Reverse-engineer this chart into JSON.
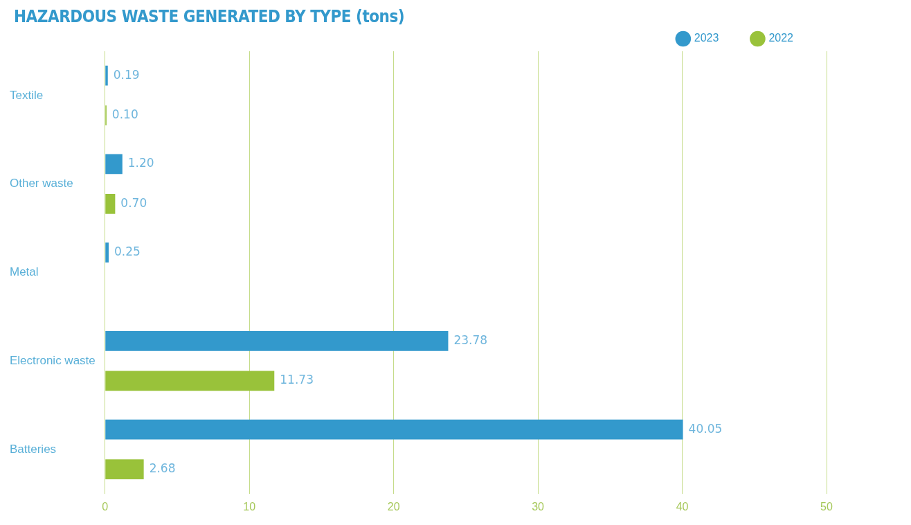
{
  "chart_data": {
    "type": "bar",
    "orientation": "horizontal",
    "title": "HAZARDOUS WASTE GENERATED BY TYPE (tons)",
    "categories": [
      "Textile",
      "Other waste",
      "Metal",
      "Electronic waste",
      "Batteries"
    ],
    "series": [
      {
        "name": "2023",
        "color": "#3399cc",
        "values": [
          0.19,
          1.2,
          0.25,
          23.78,
          40.05
        ],
        "value_labels": [
          "0.19",
          "1.20",
          "0.25",
          "23.78",
          "40.05"
        ]
      },
      {
        "name": "2022",
        "color": "#99c23a",
        "values": [
          0.1,
          0.7,
          null,
          11.73,
          2.68
        ],
        "value_labels": [
          "0.10",
          "0.70",
          null,
          "11.73",
          "2.68"
        ]
      }
    ],
    "xlim": [
      0,
      50
    ],
    "xticks": [
      0,
      10,
      20,
      30,
      40,
      50
    ],
    "grid": "x",
    "legend": "top right"
  }
}
